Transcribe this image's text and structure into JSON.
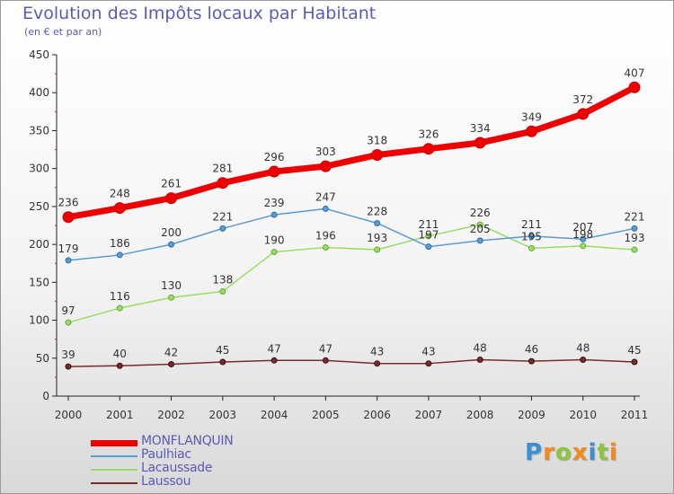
{
  "title": "Evolution des Impôts locaux par Habitant",
  "subtitle": "(en € et par an)",
  "logo": {
    "text": "Proxiti",
    "letter_colors": [
      "#3a8fd6",
      "#f08a1a",
      "#8cc63f",
      "#f08a1a",
      "#3a8fd6",
      "#8cc63f",
      "#f08a1a"
    ]
  },
  "chart_data": {
    "type": "line",
    "title": "Evolution des Impôts locaux par Habitant",
    "subtitle": "(en € et par an)",
    "xlabel": "",
    "ylabel": "",
    "x": [
      "2000",
      "2001",
      "2002",
      "2003",
      "2004",
      "2005",
      "2006",
      "2007",
      "2008",
      "2009",
      "2010",
      "2011"
    ],
    "ylim": [
      0,
      450
    ],
    "yticks": [
      0,
      50,
      100,
      150,
      200,
      250,
      300,
      350,
      400,
      450
    ],
    "grid": false,
    "legend": "bottom-left",
    "series": [
      {
        "name": "MONFLANQUIN",
        "color": "#ee0000",
        "values": [
          236,
          248,
          261,
          281,
          296,
          303,
          318,
          326,
          334,
          349,
          372,
          407
        ]
      },
      {
        "name": "Paulhiac",
        "color": "#5b9bd5",
        "values": [
          179,
          186,
          200,
          221,
          239,
          247,
          228,
          197,
          205,
          211,
          207,
          221
        ]
      },
      {
        "name": "Lacaussade",
        "color": "#99dd66",
        "values": [
          97,
          116,
          130,
          138,
          190,
          196,
          193,
          211,
          226,
          195,
          198,
          193
        ]
      },
      {
        "name": "Laussou",
        "color": "#7a2a2a",
        "values": [
          39,
          40,
          42,
          45,
          47,
          47,
          43,
          43,
          48,
          46,
          48,
          45
        ]
      }
    ]
  }
}
